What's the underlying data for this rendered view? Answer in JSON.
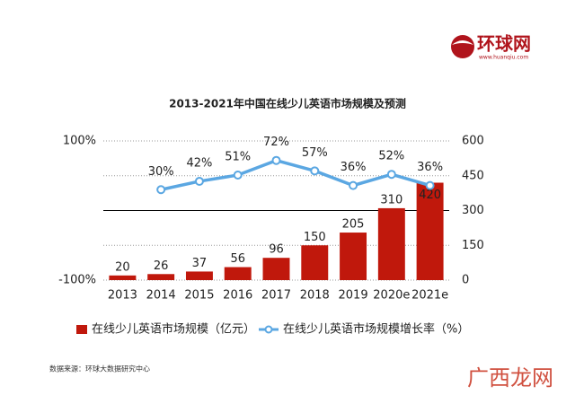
{
  "logo": {
    "name": "环球网",
    "url": "www.huanqiu.com"
  },
  "chart_data": {
    "type": "bar-line",
    "title": "2013-2021年中国在线少儿英语市场规模及预测",
    "categories": [
      "2013",
      "2014",
      "2015",
      "2016",
      "2017",
      "2018",
      "2019",
      "2020e",
      "2021e"
    ],
    "series": [
      {
        "name": "在线少儿英语市场规模（亿元）",
        "type": "bar",
        "axis": "y2",
        "color": "#c0180c",
        "values": [
          20,
          26,
          37,
          56,
          96,
          150,
          205,
          310,
          420
        ]
      },
      {
        "name": "在线少儿英语市场规模增长率（%）",
        "type": "line",
        "axis": "y",
        "color": "#5ba7e2",
        "values": [
          null,
          30,
          42,
          51,
          72,
          57,
          36,
          52,
          36
        ],
        "value_labels": [
          null,
          "30%",
          "42%",
          "51%",
          "72%",
          "57%",
          "36%",
          "52%",
          "36%"
        ]
      }
    ],
    "ylim": [
      -100,
      100
    ],
    "yticks": [
      {
        "value": -100,
        "label": "-100%"
      },
      {
        "value": 100,
        "label": "100%"
      }
    ],
    "y2lim": [
      0,
      600
    ],
    "y2ticks": [
      0,
      150,
      300,
      450,
      600
    ],
    "grid": true,
    "legend": "bottom"
  },
  "source": "数据来源：环球大数据研究中心",
  "watermark": "广西龙网"
}
